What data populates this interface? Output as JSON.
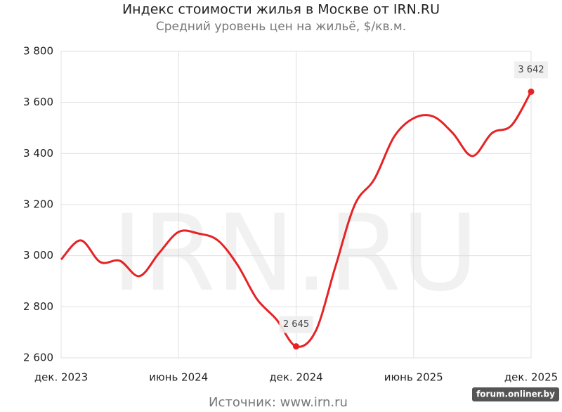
{
  "chart_data": {
    "type": "line",
    "title": "Индекс стоимости жилья в Москве от IRN.RU",
    "subtitle": "Средний уровень цен на жильё, $/кв.м.",
    "source": "Источник: www.irn.ru",
    "watermark": "IRN.RU",
    "badge": "forum.onliner.by",
    "x": [
      "2023-12",
      "2024-01",
      "2024-02",
      "2024-03",
      "2024-04",
      "2024-05",
      "2024-06",
      "2024-07",
      "2024-08",
      "2024-09",
      "2024-10",
      "2024-11",
      "2024-12",
      "2025-01",
      "2025-02",
      "2025-03",
      "2025-04",
      "2025-05",
      "2025-06",
      "2025-07",
      "2025-08",
      "2025-09",
      "2025-10",
      "2025-11",
      "2025-12"
    ],
    "xlim": [
      "2023-12",
      "2025-12"
    ],
    "xticks": [
      {
        "value": "2023-12",
        "label": "дек. 2023"
      },
      {
        "value": "2024-06",
        "label": "июнь 2024"
      },
      {
        "value": "2024-12",
        "label": "дек. 2024"
      },
      {
        "value": "2025-06",
        "label": "июнь 2025"
      },
      {
        "value": "2025-12",
        "label": "дек. 2025"
      }
    ],
    "ylim": [
      2600,
      3800
    ],
    "yticks": [
      {
        "value": 2600,
        "label": "2 600"
      },
      {
        "value": 2800,
        "label": "2 800"
      },
      {
        "value": 3000,
        "label": "3 000"
      },
      {
        "value": 3200,
        "label": "3 200"
      },
      {
        "value": 3400,
        "label": "3 400"
      },
      {
        "value": 3600,
        "label": "3 600"
      },
      {
        "value": 3800,
        "label": "3 800"
      }
    ],
    "grid": true,
    "series": [
      {
        "name": "Индекс стоимости",
        "color": "#e52325",
        "values": [
          2985,
          3060,
          2975,
          2980,
          2920,
          3010,
          3093,
          3087,
          3060,
          2965,
          2830,
          2750,
          2645,
          2705,
          2955,
          3200,
          3300,
          3465,
          3538,
          3545,
          3480,
          3390,
          3480,
          3510,
          3642
        ],
        "value_labels": [
          null,
          null,
          null,
          null,
          null,
          null,
          null,
          null,
          null,
          null,
          null,
          null,
          "2 645",
          null,
          null,
          null,
          null,
          null,
          null,
          null,
          null,
          null,
          null,
          null,
          "3 642"
        ]
      }
    ]
  }
}
